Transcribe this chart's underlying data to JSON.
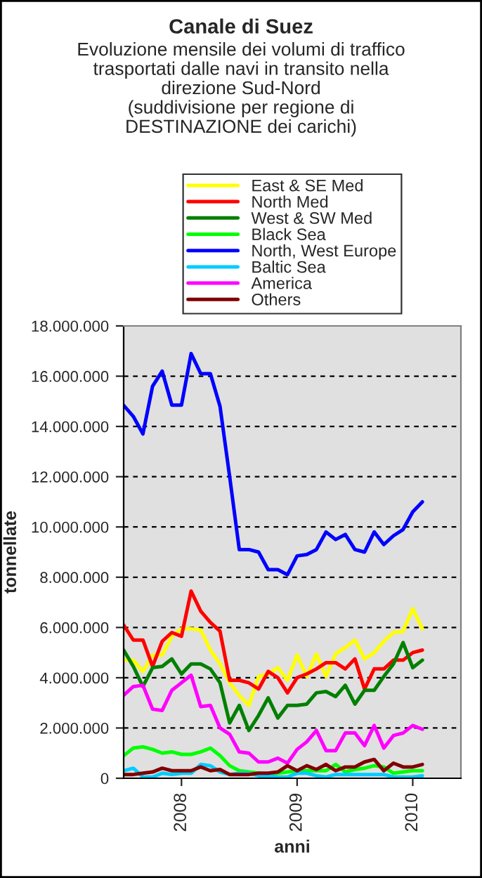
{
  "chart_data": {
    "type": "line",
    "title": "Canale di Suez",
    "subtitle": "Evoluzione mensile dei volumi di traffico\ntrasportati dalle navi in transito nella\ndirezione Sud-Nord\n(suddivisione per regione di\nDESTINAZIONE dei carichi)",
    "xlabel": "anni",
    "ylabel": "tonnellate",
    "categories": [
      null,
      null,
      null,
      null,
      null,
      null,
      "2008",
      null,
      null,
      null,
      null,
      null,
      null,
      null,
      null,
      null,
      null,
      null,
      "2009",
      null,
      null,
      null,
      null,
      null,
      null,
      null,
      null,
      null,
      null,
      null,
      "2010",
      null,
      null,
      null,
      null,
      null
    ],
    "series": [
      {
        "name": "East & SE Med",
        "color": "#ffff00",
        "values": [
          4700000,
          4700000,
          4250000,
          4900000,
          4900000,
          5650000,
          5950000,
          5950000,
          5900000,
          5100000,
          4550000,
          3800000,
          3300000,
          2900000,
          4050000,
          4150000,
          4400000,
          3900000,
          4900000,
          4050000,
          4950000,
          4050000,
          4950000,
          5200000,
          5500000,
          4750000,
          5000000,
          5450000,
          5800000,
          5850000,
          6750000,
          5950000,
          null,
          null,
          null,
          null
        ]
      },
      {
        "name": "North Med",
        "color": "#ff0000",
        "values": [
          6100000,
          5500000,
          5500000,
          4450000,
          5450000,
          5800000,
          5650000,
          7450000,
          6650000,
          6200000,
          5850000,
          3900000,
          3900000,
          3800000,
          3550000,
          4250000,
          4000000,
          3400000,
          4000000,
          4150000,
          4350000,
          4600000,
          4600000,
          4350000,
          4750000,
          3550000,
          4350000,
          4350000,
          4700000,
          4700000,
          5000000,
          5100000,
          null,
          null,
          null,
          null
        ]
      },
      {
        "name": "West & SW Med",
        "color": "#008000",
        "values": [
          5100000,
          4450000,
          3650000,
          4400000,
          4450000,
          4750000,
          4150000,
          4550000,
          4550000,
          4350000,
          3800000,
          2200000,
          2900000,
          1900000,
          2500000,
          3200000,
          2400000,
          2900000,
          2900000,
          2950000,
          3400000,
          3450000,
          3250000,
          3700000,
          2950000,
          3500000,
          3500000,
          4050000,
          4550000,
          5400000,
          4400000,
          4700000,
          null,
          null,
          null,
          null
        ]
      },
      {
        "name": "Black Sea",
        "color": "#00ff00",
        "values": [
          900000,
          1200000,
          1250000,
          1150000,
          1000000,
          1050000,
          950000,
          950000,
          1050000,
          1200000,
          900000,
          500000,
          300000,
          250000,
          200000,
          150000,
          200000,
          250000,
          300000,
          300000,
          300000,
          300000,
          550000,
          250000,
          350000,
          400000,
          500000,
          450000,
          200000,
          250000,
          300000,
          300000,
          null,
          null,
          null,
          null
        ]
      },
      {
        "name": "North, West Europe",
        "color": "#0000ff",
        "values": [
          14840000,
          14400000,
          13700000,
          15600000,
          16200000,
          14850000,
          14850000,
          16900000,
          16100000,
          16100000,
          14800000,
          12000000,
          9100000,
          9100000,
          9000000,
          8300000,
          8300000,
          8100000,
          8850000,
          8900000,
          9100000,
          9800000,
          9500000,
          9700000,
          9100000,
          9000000,
          9800000,
          9300000,
          9650000,
          9900000,
          10600000,
          11000000,
          null,
          null,
          null,
          null
        ]
      },
      {
        "name": "Baltic Sea",
        "color": "#00ccff",
        "values": [
          300000,
          400000,
          50000,
          50000,
          200000,
          150000,
          200000,
          200000,
          550000,
          500000,
          250000,
          150000,
          200000,
          200000,
          100000,
          100000,
          50000,
          50000,
          200000,
          200000,
          100000,
          50000,
          150000,
          150000,
          150000,
          150000,
          150000,
          150000,
          50000,
          50000,
          50000,
          100000,
          null,
          null,
          null,
          null
        ]
      },
      {
        "name": "America",
        "color": "#ff00ff",
        "values": [
          3300000,
          3650000,
          3700000,
          2750000,
          2700000,
          3500000,
          3800000,
          4100000,
          2850000,
          2900000,
          2000000,
          1750000,
          1050000,
          1000000,
          650000,
          650000,
          800000,
          600000,
          1150000,
          1450000,
          1900000,
          1100000,
          1100000,
          1800000,
          1800000,
          1300000,
          2100000,
          1200000,
          1700000,
          1800000,
          2100000,
          1950000,
          null,
          null,
          null,
          null
        ]
      },
      {
        "name": "Others",
        "color": "#800000",
        "values": [
          150000,
          150000,
          200000,
          250000,
          400000,
          300000,
          300000,
          300000,
          450000,
          300000,
          350000,
          150000,
          150000,
          150000,
          200000,
          200000,
          250000,
          500000,
          300000,
          500000,
          350000,
          550000,
          300000,
          450000,
          450000,
          650000,
          750000,
          300000,
          600000,
          450000,
          450000,
          550000,
          null,
          null,
          null,
          null
        ]
      }
    ],
    "ylim": [
      0,
      18000000
    ],
    "yticks": [
      0,
      {
        "value": 2000000,
        "label": "2.000.000"
      },
      {
        "value": 4000000,
        "label": "4.000.000"
      },
      {
        "value": 6000000,
        "label": "6.000.000"
      },
      {
        "value": 8000000,
        "label": "8.000.000"
      },
      {
        "value": 10000000,
        "label": "10.000.000"
      },
      {
        "value": 12000000,
        "label": "12.000.000"
      },
      {
        "value": 14000000,
        "label": "14.000.000"
      },
      {
        "value": 16000000,
        "label": "16.000.000"
      },
      {
        "value": 18000000,
        "label": "18.000.000"
      }
    ],
    "grid": "y",
    "legend": "top",
    "marker": "none",
    "line_style": "solid"
  }
}
